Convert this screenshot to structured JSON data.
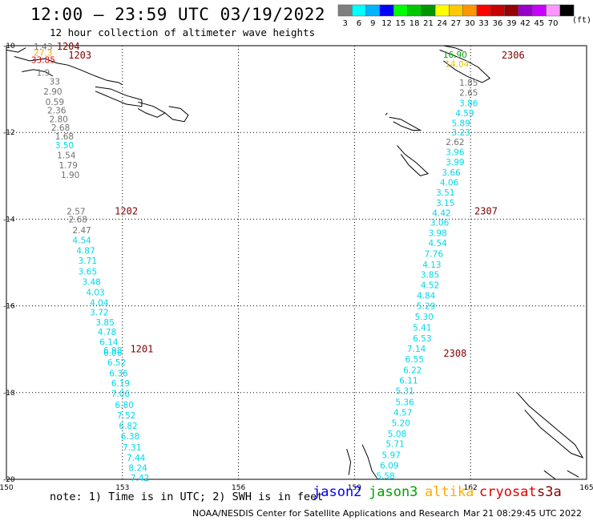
{
  "header": {
    "title": "12:00 – 23:59 UTC 03/19/2022",
    "subtitle": "12 hour collection of altimeter wave heights"
  },
  "legend": {
    "units": "(ft)",
    "bins": [
      {
        "label": "3",
        "color": "#7f7f7f"
      },
      {
        "label": "6",
        "color": "#00ffff"
      },
      {
        "label": "9",
        "color": "#00b4ff"
      },
      {
        "label": "12",
        "color": "#0000ff"
      },
      {
        "label": "15",
        "color": "#00ff00"
      },
      {
        "label": "18",
        "color": "#00c800"
      },
      {
        "label": "21",
        "color": "#009600"
      },
      {
        "label": "24",
        "color": "#ffff00"
      },
      {
        "label": "27",
        "color": "#ffc800"
      },
      {
        "label": "30",
        "color": "#ff9600"
      },
      {
        "label": "33",
        "color": "#ff0000"
      },
      {
        "label": "36",
        "color": "#c80000"
      },
      {
        "label": "39",
        "color": "#960000"
      },
      {
        "label": "42",
        "color": "#9600c8"
      },
      {
        "label": "45",
        "color": "#c800ff"
      },
      {
        "label": "70",
        "color": "#ff96ff"
      },
      {
        "label": "",
        "color": "#000000"
      }
    ]
  },
  "axes": {
    "lon_labels": [
      "150",
      "153",
      "156",
      "159",
      "162",
      "165"
    ],
    "lat_labels": [
      "-10",
      "-12",
      "-14",
      "-16",
      "-18",
      "-20"
    ],
    "lon_range": [
      150,
      165
    ],
    "lat_range": [
      -20,
      -10
    ]
  },
  "colors": {
    "gray": "#707070",
    "cyan": "#00d8e8",
    "time_label": "#800000",
    "orange": "#ffaa00",
    "red": "#e00000",
    "green": "#00a000",
    "blue": "#0000ff",
    "gold": "#e8c000"
  },
  "tracks": [
    {
      "name": "west",
      "times": [
        {
          "label": "1204",
          "lon": 151.3,
          "lat": -10.02
        },
        {
          "label": "1203",
          "lon": 151.6,
          "lat": -10.22
        },
        {
          "label": "1202",
          "lon": 152.8,
          "lat": -13.82
        },
        {
          "label": "1201",
          "lon": 153.2,
          "lat": -17.0
        }
      ],
      "points": [
        {
          "v": "1.43",
          "lon": 150.95,
          "lat": -10.02,
          "c": "gray"
        },
        {
          "v": "27.3",
          "lon": 150.95,
          "lat": -10.16,
          "c": "orange"
        },
        {
          "v": "33.85",
          "lon": 150.95,
          "lat": -10.32,
          "c": "red"
        },
        {
          "v": "1.9",
          "lon": 150.95,
          "lat": -10.62,
          "c": "gray"
        },
        {
          "v": "33",
          "lon": 151.25,
          "lat": -10.82,
          "c": "gray"
        },
        {
          "v": "2.90",
          "lon": 151.2,
          "lat": -11.05,
          "c": "gray"
        },
        {
          "v": "0.59",
          "lon": 151.25,
          "lat": -11.29,
          "c": "gray"
        },
        {
          "v": "2.36",
          "lon": 151.3,
          "lat": -11.49,
          "c": "gray"
        },
        {
          "v": "2.80",
          "lon": 151.35,
          "lat": -11.69,
          "c": "gray"
        },
        {
          "v": "2.68",
          "lon": 151.4,
          "lat": -11.89,
          "c": "gray"
        },
        {
          "v": "1.68",
          "lon": 151.5,
          "lat": -12.09,
          "c": "gray"
        },
        {
          "v": "3.50",
          "lon": 151.5,
          "lat": -12.29,
          "c": "cyan"
        },
        {
          "v": "1.54",
          "lon": 151.55,
          "lat": -12.52,
          "c": "gray"
        },
        {
          "v": "1.79",
          "lon": 151.6,
          "lat": -12.75,
          "c": "gray"
        },
        {
          "v": "1.90",
          "lon": 151.65,
          "lat": -12.98,
          "c": "gray"
        },
        {
          "v": "2.57",
          "lon": 151.8,
          "lat": -13.82,
          "c": "gray"
        },
        {
          "v": "2.68",
          "lon": 151.85,
          "lat": -14.0,
          "c": "gray"
        },
        {
          "v": "2.47",
          "lon": 151.95,
          "lat": -14.25,
          "c": "gray"
        },
        {
          "v": "4.54",
          "lon": 151.95,
          "lat": -14.48,
          "c": "cyan"
        },
        {
          "v": "4.87",
          "lon": 152.05,
          "lat": -14.72,
          "c": "cyan"
        },
        {
          "v": "3.71",
          "lon": 152.1,
          "lat": -14.95,
          "c": "cyan"
        },
        {
          "v": "3.65",
          "lon": 152.1,
          "lat": -15.2,
          "c": "cyan"
        },
        {
          "v": "3.48",
          "lon": 152.2,
          "lat": -15.44,
          "c": "cyan"
        },
        {
          "v": "4.03",
          "lon": 152.3,
          "lat": -15.68,
          "c": "cyan"
        },
        {
          "v": "4.04",
          "lon": 152.4,
          "lat": -15.92,
          "c": "cyan"
        },
        {
          "v": "3.72",
          "lon": 152.4,
          "lat": -16.15,
          "c": "cyan"
        },
        {
          "v": "3.85",
          "lon": 152.55,
          "lat": -16.38,
          "c": "cyan"
        },
        {
          "v": "4.78",
          "lon": 152.6,
          "lat": -16.6,
          "c": "cyan"
        },
        {
          "v": "6.14",
          "lon": 152.65,
          "lat": -16.83,
          "c": "cyan"
        },
        {
          "v": "6.98",
          "lon": 152.75,
          "lat": -17.02,
          "c": "cyan"
        },
        {
          "v": "6.06",
          "lon": 152.75,
          "lat": -17.08,
          "c": "cyan"
        },
        {
          "v": "6.52",
          "lon": 152.85,
          "lat": -17.3,
          "c": "cyan"
        },
        {
          "v": "6.36",
          "lon": 152.9,
          "lat": -17.55,
          "c": "cyan"
        },
        {
          "v": "6.19",
          "lon": 152.95,
          "lat": -17.78,
          "c": "cyan"
        },
        {
          "v": "7.06",
          "lon": 152.95,
          "lat": -18.02,
          "c": "cyan"
        },
        {
          "v": "6.80",
          "lon": 153.05,
          "lat": -18.28,
          "c": "cyan"
        },
        {
          "v": "7.52",
          "lon": 153.1,
          "lat": -18.52,
          "c": "cyan"
        },
        {
          "v": "6.82",
          "lon": 153.15,
          "lat": -18.76,
          "c": "cyan"
        },
        {
          "v": "6.38",
          "lon": 153.2,
          "lat": -19.0,
          "c": "cyan"
        },
        {
          "v": "7.31",
          "lon": 153.25,
          "lat": -19.26,
          "c": "cyan"
        },
        {
          "v": "7.44",
          "lon": 153.35,
          "lat": -19.5,
          "c": "cyan"
        },
        {
          "v": "8.24",
          "lon": 153.4,
          "lat": -19.73,
          "c": "cyan"
        },
        {
          "v": "7.42",
          "lon": 153.45,
          "lat": -19.96,
          "c": "cyan"
        }
      ]
    },
    {
      "name": "east",
      "times": [
        {
          "label": "2306",
          "lon": 162.8,
          "lat": -10.22
        },
        {
          "label": "2307",
          "lon": 162.1,
          "lat": -13.82
        },
        {
          "label": "2308",
          "lon": 161.3,
          "lat": -17.1
        }
      ],
      "points": [
        {
          "v": "16.90",
          "lon": 161.6,
          "lat": -10.2,
          "c": "green"
        },
        {
          "v": "14.04",
          "lon": 161.65,
          "lat": -10.42,
          "c": "gold"
        },
        {
          "v": "1.85",
          "lon": 161.95,
          "lat": -10.85,
          "c": "gray"
        },
        {
          "v": "2.65",
          "lon": 161.95,
          "lat": -11.08,
          "c": "gray"
        },
        {
          "v": "3.86",
          "lon": 161.95,
          "lat": -11.32,
          "c": "cyan"
        },
        {
          "v": "4.59",
          "lon": 161.85,
          "lat": -11.55,
          "c": "cyan"
        },
        {
          "v": "5.89",
          "lon": 161.75,
          "lat": -11.78,
          "c": "cyan"
        },
        {
          "v": "3.23",
          "lon": 161.75,
          "lat": -12.0,
          "c": "cyan"
        },
        {
          "v": "2.62",
          "lon": 161.6,
          "lat": -12.22,
          "c": "gray"
        },
        {
          "v": "3.96",
          "lon": 161.6,
          "lat": -12.45,
          "c": "cyan"
        },
        {
          "v": "3.99",
          "lon": 161.6,
          "lat": -12.68,
          "c": "cyan"
        },
        {
          "v": "3.66",
          "lon": 161.5,
          "lat": -12.92,
          "c": "cyan"
        },
        {
          "v": "4.06",
          "lon": 161.45,
          "lat": -13.15,
          "c": "cyan"
        },
        {
          "v": "3.51",
          "lon": 161.35,
          "lat": -13.38,
          "c": "cyan"
        },
        {
          "v": "3.15",
          "lon": 161.35,
          "lat": -13.62,
          "c": "cyan"
        },
        {
          "v": "4.42",
          "lon": 161.25,
          "lat": -13.85,
          "c": "cyan"
        },
        {
          "v": "3.06",
          "lon": 161.2,
          "lat": -14.08,
          "c": "cyan"
        },
        {
          "v": "3.98",
          "lon": 161.15,
          "lat": -14.32,
          "c": "cyan"
        },
        {
          "v": "4.54",
          "lon": 161.15,
          "lat": -14.55,
          "c": "cyan"
        },
        {
          "v": "7.76",
          "lon": 161.05,
          "lat": -14.8,
          "c": "cyan"
        },
        {
          "v": "4.13",
          "lon": 161.0,
          "lat": -15.05,
          "c": "cyan"
        },
        {
          "v": "3.85",
          "lon": 160.95,
          "lat": -15.28,
          "c": "cyan"
        },
        {
          "v": "4.52",
          "lon": 160.95,
          "lat": -15.52,
          "c": "cyan"
        },
        {
          "v": "4.84",
          "lon": 160.85,
          "lat": -15.76,
          "c": "cyan"
        },
        {
          "v": "5.29",
          "lon": 160.85,
          "lat": -16.0,
          "c": "cyan"
        },
        {
          "v": "5.30",
          "lon": 160.8,
          "lat": -16.25,
          "c": "cyan"
        },
        {
          "v": "5.41",
          "lon": 160.75,
          "lat": -16.5,
          "c": "cyan"
        },
        {
          "v": "6.53",
          "lon": 160.75,
          "lat": -16.75,
          "c": "cyan"
        },
        {
          "v": "7.14",
          "lon": 160.6,
          "lat": -16.99,
          "c": "cyan"
        },
        {
          "v": "6.55",
          "lon": 160.55,
          "lat": -17.23,
          "c": "cyan"
        },
        {
          "v": "6.22",
          "lon": 160.5,
          "lat": -17.48,
          "c": "cyan"
        },
        {
          "v": "6.11",
          "lon": 160.4,
          "lat": -17.72,
          "c": "cyan"
        },
        {
          "v": "5.31",
          "lon": 160.3,
          "lat": -17.96,
          "c": "cyan"
        },
        {
          "v": "5.36",
          "lon": 160.3,
          "lat": -18.22,
          "c": "cyan"
        },
        {
          "v": "4.57",
          "lon": 160.25,
          "lat": -18.46,
          "c": "cyan"
        },
        {
          "v": "5.20",
          "lon": 160.2,
          "lat": -18.7,
          "c": "cyan"
        },
        {
          "v": "5.08",
          "lon": 160.1,
          "lat": -18.95,
          "c": "cyan"
        },
        {
          "v": "5.71",
          "lon": 160.05,
          "lat": -19.18,
          "c": "cyan"
        },
        {
          "v": "5.97",
          "lon": 159.95,
          "lat": -19.44,
          "c": "cyan"
        },
        {
          "v": "6.09",
          "lon": 159.9,
          "lat": -19.68,
          "c": "cyan"
        },
        {
          "v": "5.58",
          "lon": 159.8,
          "lat": -19.92,
          "c": "cyan"
        }
      ]
    }
  ],
  "footer": {
    "note": "note: 1) Time is in UTC; 2) SWH is in feet",
    "satellites": [
      {
        "name": "jason2",
        "color": "#0000ff"
      },
      {
        "name": "jason3",
        "color": "#00a000"
      },
      {
        "name": "altika",
        "color": "#ffaa00"
      },
      {
        "name": "cryosat",
        "color": "#e00000"
      },
      {
        "name": "s3a",
        "color": "#800000"
      }
    ],
    "credit": "NOAA/NESDIS Center for Satellite Applications and Research",
    "timestamp": "Mar 21 08:29:45 UTC 2022"
  }
}
